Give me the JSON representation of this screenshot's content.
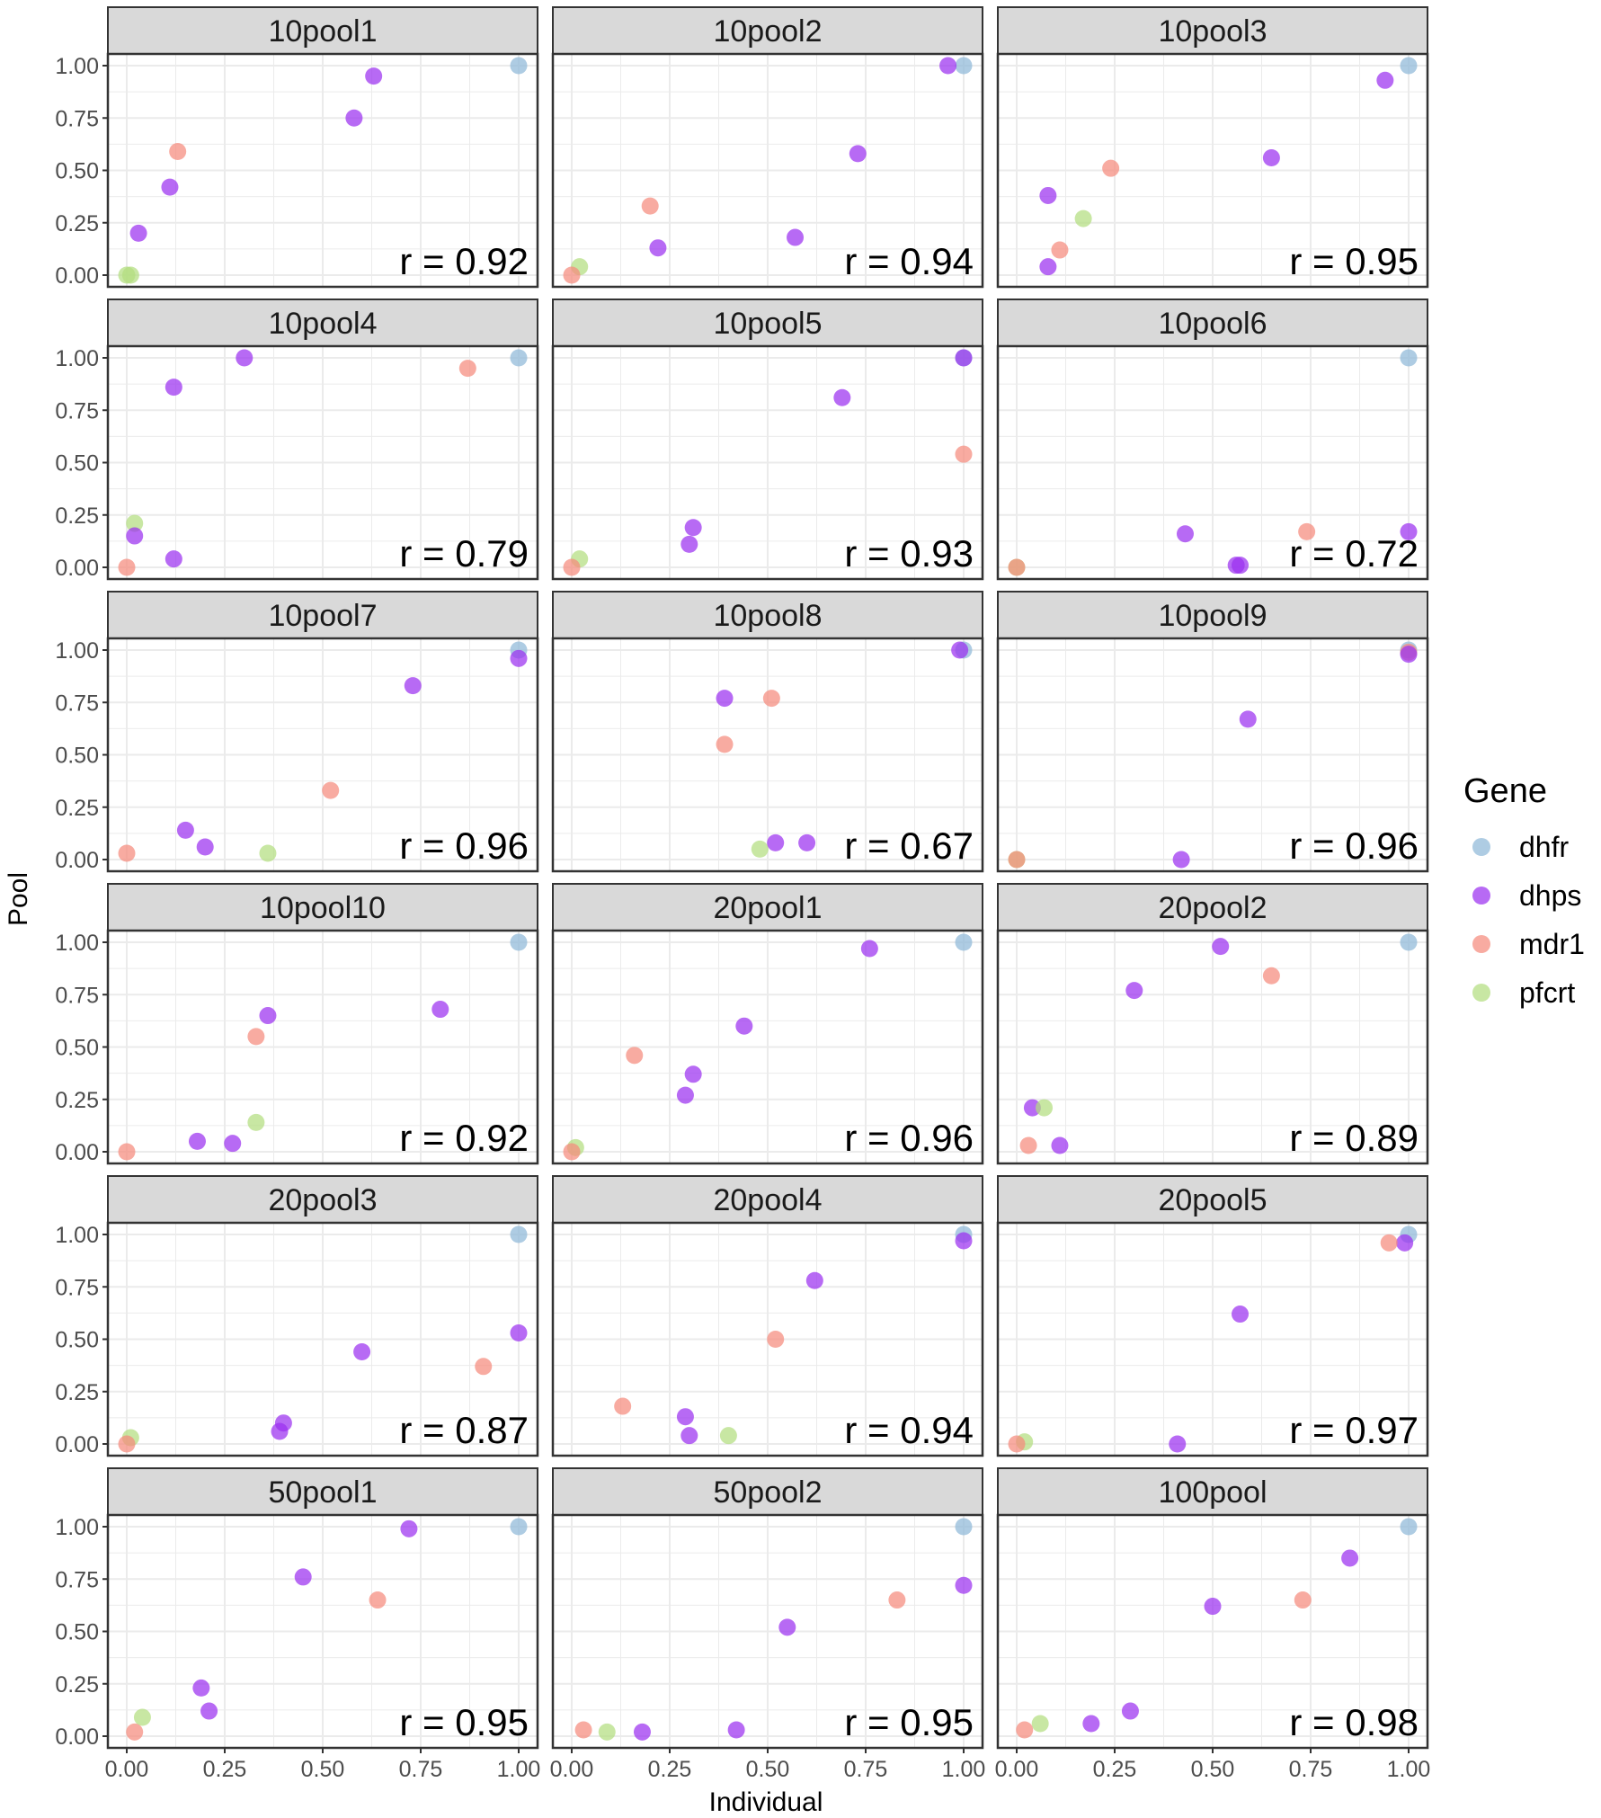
{
  "colors": {
    "dhfr": "#8fb8d8",
    "dhps": "#9b30f0",
    "mdr1": "#f58a7d",
    "pfcrt": "#b3de7f",
    "strip_fill": "#d9d9d9",
    "grid": "#ebebeb",
    "frame": "#333333"
  },
  "chart_data": {
    "type": "scatter",
    "xlabel": "Individual",
    "ylabel": "Pool",
    "xlim": [
      0,
      1
    ],
    "ylim": [
      0,
      1
    ],
    "x_ticks": [
      "0.00",
      "0.25",
      "0.50",
      "0.75",
      "1.00"
    ],
    "y_ticks": [
      "0.00",
      "0.25",
      "0.50",
      "0.75",
      "1.00"
    ],
    "legend": {
      "title": "Gene",
      "entries": [
        "dhfr",
        "dhps",
        "mdr1",
        "pfcrt"
      ],
      "position": "right"
    },
    "facets": [
      {
        "title": "10pool1",
        "r_label": "r = 0.92",
        "points": [
          {
            "gene": "dhfr",
            "x": 1.0,
            "y": 1.0
          },
          {
            "gene": "dhps",
            "x": 0.63,
            "y": 0.95
          },
          {
            "gene": "dhps",
            "x": 0.58,
            "y": 0.75
          },
          {
            "gene": "mdr1",
            "x": 0.13,
            "y": 0.59
          },
          {
            "gene": "dhps",
            "x": 0.11,
            "y": 0.42
          },
          {
            "gene": "dhps",
            "x": 0.03,
            "y": 0.2
          },
          {
            "gene": "pfcrt",
            "x": 0.0,
            "y": 0.0
          },
          {
            "gene": "pfcrt",
            "x": 0.01,
            "y": 0.0
          }
        ]
      },
      {
        "title": "10pool2",
        "r_label": "r = 0.94",
        "points": [
          {
            "gene": "dhfr",
            "x": 1.0,
            "y": 1.0
          },
          {
            "gene": "dhps",
            "x": 0.96,
            "y": 1.0
          },
          {
            "gene": "dhps",
            "x": 0.73,
            "y": 0.58
          },
          {
            "gene": "mdr1",
            "x": 0.2,
            "y": 0.33
          },
          {
            "gene": "dhps",
            "x": 0.22,
            "y": 0.13
          },
          {
            "gene": "dhps",
            "x": 0.57,
            "y": 0.18
          },
          {
            "gene": "pfcrt",
            "x": 0.02,
            "y": 0.04
          },
          {
            "gene": "mdr1",
            "x": 0.0,
            "y": 0.0
          }
        ]
      },
      {
        "title": "10pool3",
        "r_label": "r = 0.95",
        "points": [
          {
            "gene": "dhfr",
            "x": 1.0,
            "y": 1.0
          },
          {
            "gene": "dhps",
            "x": 0.94,
            "y": 0.93
          },
          {
            "gene": "dhps",
            "x": 0.65,
            "y": 0.56
          },
          {
            "gene": "mdr1",
            "x": 0.24,
            "y": 0.51
          },
          {
            "gene": "dhps",
            "x": 0.08,
            "y": 0.38
          },
          {
            "gene": "pfcrt",
            "x": 0.17,
            "y": 0.27
          },
          {
            "gene": "mdr1",
            "x": 0.11,
            "y": 0.12
          },
          {
            "gene": "dhps",
            "x": 0.08,
            "y": 0.04
          }
        ]
      },
      {
        "title": "10pool4",
        "r_label": "r = 0.79",
        "points": [
          {
            "gene": "dhfr",
            "x": 1.0,
            "y": 1.0
          },
          {
            "gene": "dhps",
            "x": 0.3,
            "y": 1.0
          },
          {
            "gene": "mdr1",
            "x": 0.87,
            "y": 0.95
          },
          {
            "gene": "dhps",
            "x": 0.12,
            "y": 0.86
          },
          {
            "gene": "pfcrt",
            "x": 0.02,
            "y": 0.21
          },
          {
            "gene": "dhps",
            "x": 0.02,
            "y": 0.15
          },
          {
            "gene": "dhps",
            "x": 0.12,
            "y": 0.04
          },
          {
            "gene": "mdr1",
            "x": 0.0,
            "y": 0.0
          }
        ]
      },
      {
        "title": "10pool5",
        "r_label": "r = 0.93",
        "points": [
          {
            "gene": "dhfr",
            "x": 1.0,
            "y": 1.0
          },
          {
            "gene": "dhps",
            "x": 1.0,
            "y": 1.0
          },
          {
            "gene": "dhps",
            "x": 0.69,
            "y": 0.81
          },
          {
            "gene": "mdr1",
            "x": 1.0,
            "y": 0.54
          },
          {
            "gene": "dhps",
            "x": 0.31,
            "y": 0.19
          },
          {
            "gene": "dhps",
            "x": 0.3,
            "y": 0.11
          },
          {
            "gene": "pfcrt",
            "x": 0.02,
            "y": 0.04
          },
          {
            "gene": "mdr1",
            "x": 0.0,
            "y": 0.0
          }
        ]
      },
      {
        "title": "10pool6",
        "r_label": "r = 0.72",
        "points": [
          {
            "gene": "dhfr",
            "x": 1.0,
            "y": 1.0
          },
          {
            "gene": "dhps",
            "x": 1.0,
            "y": 0.17
          },
          {
            "gene": "mdr1",
            "x": 0.74,
            "y": 0.17
          },
          {
            "gene": "dhps",
            "x": 0.43,
            "y": 0.16
          },
          {
            "gene": "dhps",
            "x": 0.56,
            "y": 0.01
          },
          {
            "gene": "dhps",
            "x": 0.57,
            "y": 0.01
          },
          {
            "gene": "pfcrt",
            "x": 0.0,
            "y": 0.0
          },
          {
            "gene": "mdr1",
            "x": 0.0,
            "y": 0.0
          }
        ]
      },
      {
        "title": "10pool7",
        "r_label": "r = 0.96",
        "points": [
          {
            "gene": "dhfr",
            "x": 1.0,
            "y": 1.0
          },
          {
            "gene": "dhps",
            "x": 1.0,
            "y": 0.96
          },
          {
            "gene": "dhps",
            "x": 0.73,
            "y": 0.83
          },
          {
            "gene": "mdr1",
            "x": 0.52,
            "y": 0.33
          },
          {
            "gene": "dhps",
            "x": 0.15,
            "y": 0.14
          },
          {
            "gene": "dhps",
            "x": 0.2,
            "y": 0.06
          },
          {
            "gene": "pfcrt",
            "x": 0.36,
            "y": 0.03
          },
          {
            "gene": "mdr1",
            "x": 0.0,
            "y": 0.03
          }
        ]
      },
      {
        "title": "10pool8",
        "r_label": "r = 0.67",
        "points": [
          {
            "gene": "dhfr",
            "x": 1.0,
            "y": 1.0
          },
          {
            "gene": "dhps",
            "x": 0.99,
            "y": 1.0
          },
          {
            "gene": "dhps",
            "x": 0.39,
            "y": 0.77
          },
          {
            "gene": "mdr1",
            "x": 0.51,
            "y": 0.77
          },
          {
            "gene": "mdr1",
            "x": 0.39,
            "y": 0.55
          },
          {
            "gene": "pfcrt",
            "x": 0.48,
            "y": 0.05
          },
          {
            "gene": "dhps",
            "x": 0.52,
            "y": 0.08
          },
          {
            "gene": "dhps",
            "x": 0.6,
            "y": 0.08
          }
        ]
      },
      {
        "title": "10pool9",
        "r_label": "r = 0.96",
        "points": [
          {
            "gene": "dhfr",
            "x": 1.0,
            "y": 1.0
          },
          {
            "gene": "mdr1",
            "x": 1.0,
            "y": 0.99
          },
          {
            "gene": "dhps",
            "x": 1.0,
            "y": 0.98
          },
          {
            "gene": "dhps",
            "x": 0.59,
            "y": 0.67
          },
          {
            "gene": "dhps",
            "x": 0.42,
            "y": 0.0
          },
          {
            "gene": "pfcrt",
            "x": 0.0,
            "y": 0.0
          },
          {
            "gene": "mdr1",
            "x": 0.0,
            "y": 0.0
          }
        ]
      },
      {
        "title": "10pool10",
        "r_label": "r = 0.92",
        "points": [
          {
            "gene": "dhfr",
            "x": 1.0,
            "y": 1.0
          },
          {
            "gene": "dhps",
            "x": 0.8,
            "y": 0.68
          },
          {
            "gene": "dhps",
            "x": 0.36,
            "y": 0.65
          },
          {
            "gene": "mdr1",
            "x": 0.33,
            "y": 0.55
          },
          {
            "gene": "pfcrt",
            "x": 0.33,
            "y": 0.14
          },
          {
            "gene": "dhps",
            "x": 0.18,
            "y": 0.05
          },
          {
            "gene": "dhps",
            "x": 0.27,
            "y": 0.04
          },
          {
            "gene": "mdr1",
            "x": 0.0,
            "y": 0.0
          }
        ]
      },
      {
        "title": "20pool1",
        "r_label": "r = 0.96",
        "points": [
          {
            "gene": "dhfr",
            "x": 1.0,
            "y": 1.0
          },
          {
            "gene": "dhps",
            "x": 0.76,
            "y": 0.97
          },
          {
            "gene": "dhps",
            "x": 0.44,
            "y": 0.6
          },
          {
            "gene": "mdr1",
            "x": 0.16,
            "y": 0.46
          },
          {
            "gene": "dhps",
            "x": 0.31,
            "y": 0.37
          },
          {
            "gene": "dhps",
            "x": 0.29,
            "y": 0.27
          },
          {
            "gene": "pfcrt",
            "x": 0.01,
            "y": 0.02
          },
          {
            "gene": "mdr1",
            "x": 0.0,
            "y": 0.0
          }
        ]
      },
      {
        "title": "20pool2",
        "r_label": "r = 0.89",
        "points": [
          {
            "gene": "dhfr",
            "x": 1.0,
            "y": 1.0
          },
          {
            "gene": "dhps",
            "x": 0.52,
            "y": 0.98
          },
          {
            "gene": "mdr1",
            "x": 0.65,
            "y": 0.84
          },
          {
            "gene": "dhps",
            "x": 0.3,
            "y": 0.77
          },
          {
            "gene": "dhps",
            "x": 0.04,
            "y": 0.21
          },
          {
            "gene": "pfcrt",
            "x": 0.07,
            "y": 0.21
          },
          {
            "gene": "mdr1",
            "x": 0.03,
            "y": 0.03
          },
          {
            "gene": "dhps",
            "x": 0.11,
            "y": 0.03
          }
        ]
      },
      {
        "title": "20pool3",
        "r_label": "r = 0.87",
        "points": [
          {
            "gene": "dhfr",
            "x": 1.0,
            "y": 1.0
          },
          {
            "gene": "dhps",
            "x": 1.0,
            "y": 0.53
          },
          {
            "gene": "dhps",
            "x": 0.6,
            "y": 0.44
          },
          {
            "gene": "mdr1",
            "x": 0.91,
            "y": 0.37
          },
          {
            "gene": "dhps",
            "x": 0.4,
            "y": 0.1
          },
          {
            "gene": "dhps",
            "x": 0.39,
            "y": 0.06
          },
          {
            "gene": "pfcrt",
            "x": 0.01,
            "y": 0.03
          },
          {
            "gene": "mdr1",
            "x": 0.0,
            "y": 0.0
          }
        ]
      },
      {
        "title": "20pool4",
        "r_label": "r = 0.94",
        "points": [
          {
            "gene": "dhfr",
            "x": 1.0,
            "y": 1.0
          },
          {
            "gene": "dhps",
            "x": 1.0,
            "y": 0.97
          },
          {
            "gene": "dhps",
            "x": 0.62,
            "y": 0.78
          },
          {
            "gene": "mdr1",
            "x": 0.52,
            "y": 0.5
          },
          {
            "gene": "mdr1",
            "x": 0.13,
            "y": 0.18
          },
          {
            "gene": "dhps",
            "x": 0.29,
            "y": 0.13
          },
          {
            "gene": "dhps",
            "x": 0.3,
            "y": 0.04
          },
          {
            "gene": "pfcrt",
            "x": 0.4,
            "y": 0.04
          }
        ]
      },
      {
        "title": "20pool5",
        "r_label": "r = 0.97",
        "points": [
          {
            "gene": "dhfr",
            "x": 1.0,
            "y": 1.0
          },
          {
            "gene": "dhps",
            "x": 0.99,
            "y": 0.96
          },
          {
            "gene": "mdr1",
            "x": 0.95,
            "y": 0.96
          },
          {
            "gene": "dhps",
            "x": 0.57,
            "y": 0.62
          },
          {
            "gene": "dhps",
            "x": 0.41,
            "y": 0.0
          },
          {
            "gene": "pfcrt",
            "x": 0.02,
            "y": 0.01
          },
          {
            "gene": "mdr1",
            "x": 0.0,
            "y": 0.0
          }
        ]
      },
      {
        "title": "50pool1",
        "r_label": "r = 0.95",
        "points": [
          {
            "gene": "dhfr",
            "x": 1.0,
            "y": 1.0
          },
          {
            "gene": "dhps",
            "x": 0.72,
            "y": 0.99
          },
          {
            "gene": "dhps",
            "x": 0.45,
            "y": 0.76
          },
          {
            "gene": "mdr1",
            "x": 0.64,
            "y": 0.65
          },
          {
            "gene": "dhps",
            "x": 0.19,
            "y": 0.23
          },
          {
            "gene": "dhps",
            "x": 0.21,
            "y": 0.12
          },
          {
            "gene": "pfcrt",
            "x": 0.04,
            "y": 0.09
          },
          {
            "gene": "mdr1",
            "x": 0.02,
            "y": 0.02
          }
        ]
      },
      {
        "title": "50pool2",
        "r_label": "r = 0.95",
        "points": [
          {
            "gene": "dhfr",
            "x": 1.0,
            "y": 1.0
          },
          {
            "gene": "dhps",
            "x": 1.0,
            "y": 0.72
          },
          {
            "gene": "mdr1",
            "x": 0.83,
            "y": 0.65
          },
          {
            "gene": "dhps",
            "x": 0.55,
            "y": 0.52
          },
          {
            "gene": "mdr1",
            "x": 0.03,
            "y": 0.03
          },
          {
            "gene": "pfcrt",
            "x": 0.09,
            "y": 0.02
          },
          {
            "gene": "dhps",
            "x": 0.18,
            "y": 0.02
          },
          {
            "gene": "dhps",
            "x": 0.42,
            "y": 0.03
          }
        ]
      },
      {
        "title": "100pool",
        "r_label": "r = 0.98",
        "points": [
          {
            "gene": "dhfr",
            "x": 1.0,
            "y": 1.0
          },
          {
            "gene": "dhps",
            "x": 0.85,
            "y": 0.85
          },
          {
            "gene": "mdr1",
            "x": 0.73,
            "y": 0.65
          },
          {
            "gene": "dhps",
            "x": 0.5,
            "y": 0.62
          },
          {
            "gene": "dhps",
            "x": 0.29,
            "y": 0.12
          },
          {
            "gene": "dhps",
            "x": 0.19,
            "y": 0.06
          },
          {
            "gene": "pfcrt",
            "x": 0.06,
            "y": 0.06
          },
          {
            "gene": "mdr1",
            "x": 0.02,
            "y": 0.03
          }
        ]
      }
    ]
  }
}
